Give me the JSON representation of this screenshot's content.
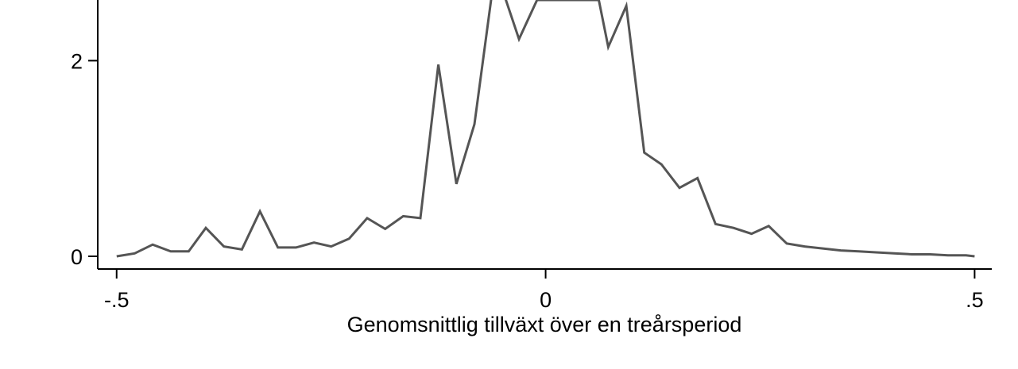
{
  "chart_data": {
    "type": "line",
    "title": "",
    "xlabel": "Genomsnittlig tillväxt över en treårsperiod",
    "ylabel": "",
    "xlim": [
      -0.522,
      0.52
    ],
    "ylim": [
      -0.13,
      2.62
    ],
    "x_ticks": [
      -0.5,
      0,
      0.5
    ],
    "x_tick_labels": [
      "-.5",
      "0",
      ".5"
    ],
    "y_ticks": [
      0,
      2
    ],
    "y_tick_labels": [
      "0",
      "2"
    ],
    "grid": false,
    "legend": "none",
    "series": [
      {
        "color": "#555555",
        "x": [
          -0.5,
          -0.479,
          -0.458,
          -0.437,
          -0.416,
          -0.396,
          -0.375,
          -0.354,
          -0.333,
          -0.312,
          -0.291,
          -0.27,
          -0.25,
          -0.229,
          -0.208,
          -0.187,
          -0.166,
          -0.146,
          -0.125,
          -0.104,
          -0.083,
          -0.062,
          -0.052,
          -0.031,
          -0.01,
          0.01,
          0.031,
          0.052,
          0.062,
          0.073,
          0.094,
          0.115,
          0.135,
          0.156,
          0.177,
          0.198,
          0.219,
          0.24,
          0.26,
          0.281,
          0.302,
          0.323,
          0.344,
          0.365,
          0.385,
          0.406,
          0.427,
          0.448,
          0.469,
          0.49,
          0.5
        ],
        "y": [
          0.0,
          0.03,
          0.12,
          0.05,
          0.05,
          0.29,
          0.1,
          0.07,
          0.46,
          0.09,
          0.09,
          0.14,
          0.1,
          0.18,
          0.39,
          0.28,
          0.41,
          0.39,
          1.96,
          0.74,
          1.35,
          2.72,
          2.77,
          2.22,
          2.62,
          2.62,
          2.62,
          2.62,
          2.62,
          2.14,
          2.56,
          1.06,
          0.94,
          0.7,
          0.8,
          0.33,
          0.29,
          0.23,
          0.31,
          0.13,
          0.1,
          0.08,
          0.06,
          0.05,
          0.04,
          0.03,
          0.02,
          0.02,
          0.01,
          0.01,
          0.0
        ]
      }
    ]
  }
}
